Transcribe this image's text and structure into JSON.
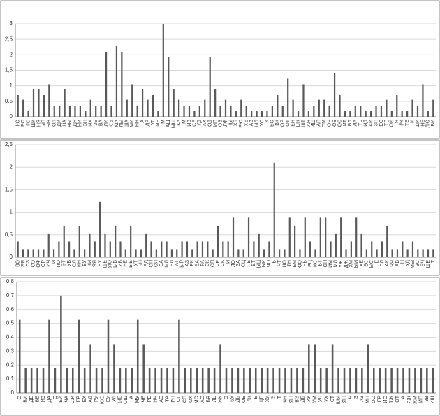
{
  "chart_data": [
    {
      "type": "bar",
      "color": "#595959",
      "grid": true,
      "ylim": [
        0,
        3
      ],
      "yticks": [
        0,
        {
          "value": 0.5,
          "label": "0,5"
        },
        1,
        {
          "value": 1.5,
          "label": "1,5"
        },
        2,
        {
          "value": 2.5,
          "label": "2,5"
        },
        3
      ],
      "categories": [
        "КО",
        "РО",
        "ГО",
        "ШК",
        "НЯ",
        "ЫП",
        "ЫН",
        "ОЛ",
        "ДИ",
        "НА",
        "ВЫ",
        "ДН",
        "НИ",
        "ЗН",
        "ИХ",
        "ЗЕ",
        "ВА",
        "ЛИ",
        "СЬ",
        "МА",
        "ЛЫ",
        "ША",
        "МИ",
        "НН",
        "А",
        "ДР",
        "УГ",
        "ИЕ",
        "М",
        "АЩ",
        "ЫШ",
        "КА",
        "М",
        "ИВ",
        "СЕ",
        "ГД",
        "АХ",
        "ОД",
        "ИП",
        "ОВ",
        "ЛФ",
        "НЫ",
        "ХБ",
        "РЮ",
        "ХЕ",
        "АВ",
        "ЫЛ",
        "УС",
        "К",
        "БО",
        "ВК",
        "ОР",
        "ОТ",
        "ЕН",
        "ЫК",
        "ШТ",
        "АН",
        "ИШ",
        "АП",
        "ОМ",
        "ОЧ",
        "ЮБ",
        "ОС",
        "ИТ",
        "БЛ",
        "ЛА",
        "ТЬ",
        "ИД",
        "АИ",
        "ЗП",
        "ЕС",
        "ТР",
        "ОЙ",
        "Я",
        "РК",
        "ТЕ",
        "И",
        "ШИ",
        "НЕ",
        "ЛЮ",
        "БИ"
      ],
      "values": [
        0.7,
        0.55,
        0.18,
        0.88,
        0.88,
        0.7,
        1.05,
        0.35,
        0.35,
        0.88,
        0.35,
        0.35,
        0.35,
        0.18,
        0.55,
        0.35,
        0.35,
        2.1,
        0.35,
        2.28,
        2.1,
        0.55,
        1.05,
        0.35,
        0.88,
        0.55,
        0.7,
        0.18,
        3.0,
        1.93,
        0.88,
        0.55,
        0.35,
        0.35,
        0.18,
        0.35,
        0.55,
        1.93,
        0.88,
        0.35,
        0.55,
        0.35,
        0.18,
        0.55,
        0.35,
        0.18,
        0.18,
        0.18,
        0.18,
        0.35,
        0.7,
        0.35,
        1.23,
        0.55,
        0.18,
        1.05,
        0.18,
        0.35,
        0.55,
        0.55,
        0.35,
        1.4,
        0.7,
        0.18,
        0.18,
        0.35,
        0.35,
        0.18,
        0.18,
        0.35,
        0.35,
        0.55,
        0.18,
        0.7,
        0.18,
        0.18,
        0.55,
        0.35,
        1.05,
        0.18,
        0.55
      ]
    },
    {
      "type": "bar",
      "color": "#595959",
      "grid": true,
      "ylim": [
        0,
        2.5
      ],
      "yticks": [
        0,
        {
          "value": 0.5,
          "label": "0,5"
        },
        1,
        {
          "value": 1.5,
          "label": "1,5"
        },
        2,
        {
          "value": 2.5,
          "label": "2,5"
        }
      ],
      "categories": [
        "ВО",
        "ЭЯ",
        "СЗ",
        "СО",
        "ОФ",
        "ОР",
        "ИЧ",
        "И",
        "ПО",
        "ЭТ",
        "УВ",
        "ОЛ",
        "ИН",
        "БУ",
        "КИ",
        "ЯЯ",
        "ЕУ",
        "ЩЕ",
        "УЮ",
        "ЫВ",
        "ИБ",
        "НЕ",
        "ЫЕ",
        "УТ",
        "ЬН",
        "ЕД",
        "ОП",
        "СЯ",
        "СА",
        "ЫЛ",
        "ЕЛ",
        "АТ",
        "ЫР",
        "АЗ",
        "ЕК",
        "ЕА",
        "РА",
        "СК",
        "СП",
        "ЧЕ",
        "СК",
        "И",
        "ЛО",
        "ЗА",
        "СЦ",
        "ПЕ",
        "ЕТ",
        "ЫЦ",
        "ЫК",
        "ЧО",
        "ЧЬ",
        "ЧТ",
        "НО",
        "ТН",
        "ЕМ",
        "ЮО",
        "НЬ",
        "РЦ",
        "ИС",
        "БТ",
        "ОН",
        "ИМ",
        "МЛ",
        "УЖ",
        "ДЖ",
        "ХМ",
        "ЫИ",
        "ХЕ",
        "ЕС",
        "ЫС",
        "Е",
        "СЛ",
        "АК",
        "ЧЯ",
        "АВ",
        "Н",
        "УД",
        "МЫ",
        "ВС",
        "ЕЧ",
        "ЩЕ",
        "Т"
      ],
      "values": [
        0.35,
        0.18,
        0.18,
        0.18,
        0.18,
        0.18,
        0.53,
        0.18,
        0.35,
        0.7,
        0.35,
        0.18,
        0.7,
        0.18,
        0.53,
        0.35,
        1.23,
        0.53,
        0.35,
        0.7,
        0.35,
        0.18,
        0.7,
        0.18,
        0.18,
        0.53,
        0.35,
        0.18,
        0.35,
        0.35,
        0.18,
        0.18,
        0.35,
        0.35,
        0.18,
        0.35,
        0.35,
        0.35,
        0.18,
        0.7,
        0.35,
        0.35,
        0.88,
        0.18,
        0.18,
        0.88,
        0.35,
        0.53,
        0.18,
        0.35,
        2.1,
        0.18,
        0.18,
        0.88,
        0.7,
        0.18,
        0.88,
        0.35,
        0.18,
        0.88,
        0.88,
        0.35,
        0.53,
        0.88,
        0.18,
        0.35,
        0.88,
        0.53,
        0.18,
        0.35,
        0.18,
        0.35,
        0.7,
        0.18,
        0.18,
        0.35,
        0.18,
        0.35,
        0.18,
        0.18,
        0.18,
        0.18
      ]
    },
    {
      "type": "bar",
      "color": "#595959",
      "grid": true,
      "ylim": [
        0,
        0.8
      ],
      "yticks": [
        0,
        {
          "value": 0.1,
          "label": "0,1"
        },
        {
          "value": 0.2,
          "label": "0,2"
        },
        {
          "value": 0.3,
          "label": "0,3"
        },
        {
          "value": 0.4,
          "label": "0,4"
        },
        {
          "value": 0.5,
          "label": "0,5"
        },
        {
          "value": 0.6,
          "label": "0,6"
        },
        {
          "value": 0.7,
          "label": "0,7"
        },
        {
          "value": 0.8,
          "label": "0,8"
        }
      ],
      "categories": [
        "О",
        "ВИ",
        "ДЕ",
        "ВЕ",
        "ИЗ",
        "ДА",
        "С",
        "ЕЙ",
        "ЧА",
        "СЖ",
        "ЕР",
        "ЕХ",
        "АД",
        "РУ",
        "ЮС",
        "ЕУ",
        "УЛ",
        "ЫЕ",
        "ОШ",
        "А",
        "МУ",
        "ЧЕ",
        "РЕ",
        "ИЧ",
        "АС",
        "ТА",
        "РН",
        "ОГ",
        "СП",
        "ОХ",
        "МО",
        "АО",
        "БЯ",
        "ЛЬ",
        "ЖК",
        "О",
        "БУ",
        "ДЬ",
        "ОБ",
        "ЛК",
        "Е",
        "ЩЕ",
        "ХУ",
        "Э",
        "Т",
        "ЧН",
        "ЯН",
        "ВЭ",
        "ДБ",
        "УУ",
        "УМ",
        "УЧ",
        "УХ",
        "СТ",
        "ШЫ",
        "ЯН",
        "Ч",
        "З",
        "АЗ",
        "МН",
        "ОО",
        "ЕР",
        "ИО",
        "ТЖ",
        "ОТ",
        "А",
        "ЯЖ",
        "ЖМ",
        "ИП",
        "ЗВ",
        "ИЩ"
      ],
      "values": [
        0.53,
        0.18,
        0.18,
        0.18,
        0.18,
        0.53,
        0.18,
        0.7,
        0.18,
        0.18,
        0.53,
        0.18,
        0.35,
        0.18,
        0.18,
        0.53,
        0.35,
        0.18,
        0.18,
        0.18,
        0.53,
        0.35,
        0.18,
        0.18,
        0.18,
        0.18,
        0.18,
        0.53,
        0.18,
        0.18,
        0.18,
        0.18,
        0.18,
        0.18,
        0.35,
        0.18,
        0.18,
        0.18,
        0.18,
        0.18,
        0.18,
        0.18,
        0.18,
        0.18,
        0.18,
        0.18,
        0.18,
        0.18,
        0.18,
        0.35,
        0.35,
        0.18,
        0.18,
        0.35,
        0.18,
        0.18,
        0.18,
        0.18,
        0.18,
        0.35,
        0.18,
        0.18,
        0.18,
        0.18,
        0.18,
        0.18,
        0.18,
        0.18,
        0.18,
        0.18,
        0.18
      ]
    }
  ]
}
